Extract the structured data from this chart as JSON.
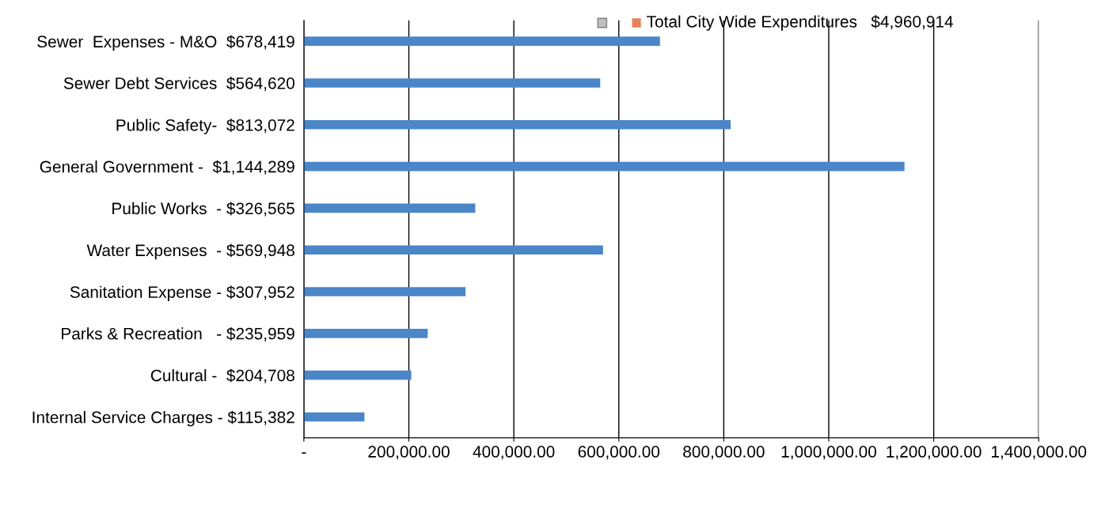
{
  "chart_data": {
    "type": "bar",
    "orientation": "horizontal",
    "categories": [
      "Sewer  Expenses - M&O  $678,419",
      "Sewer Debt Services  $564,620",
      "Public Safety-  $813,072",
      "General Government -  $1,144,289",
      "Public Works  - $326,565",
      "Water Expenses  - $569,948",
      "Sanitation Expense - $307,952",
      "Parks & Recreation   - $235,959",
      "Cultural -  $204,708",
      "Internal Service Charges - $115,382"
    ],
    "values": [
      678419,
      564620,
      813072,
      1144289,
      326565,
      569948,
      307952,
      235959,
      204708,
      115382
    ],
    "color": "#4a86c8",
    "xlim": [
      0,
      1400000
    ],
    "xticks": [
      {
        "value": 0,
        "label": "-"
      },
      {
        "value": 200000,
        "label": "200,000.00"
      },
      {
        "value": 400000,
        "label": "400,000.00"
      },
      {
        "value": 600000,
        "label": "600,000.00"
      },
      {
        "value": 800000,
        "label": "800,000.00"
      },
      {
        "value": 1000000,
        "label": "1,000,000.00"
      },
      {
        "value": 1200000,
        "label": "1,200,000.00"
      },
      {
        "value": 1400000,
        "label": "1,400,000.00"
      }
    ],
    "grid": "x",
    "annotations": [
      "Total City Wide Expenditures   $4,960,914"
    ]
  }
}
